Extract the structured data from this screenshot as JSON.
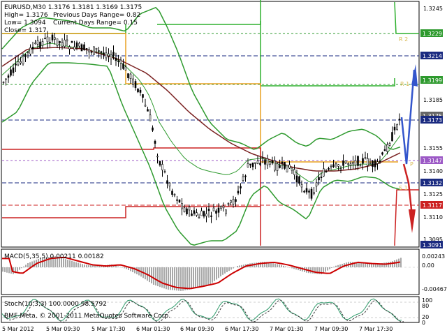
{
  "header": {
    "symbol_line": "EURUSD,M30  1.3176 1.3181 1.3169 1.3175",
    "high": "High= 1.3176",
    "low": "Low= 1.3094",
    "close": "Close= 1.317",
    "prev_range": "Previous Days Range= 0.82",
    "curr_range": "Current Days Range= 0.15"
  },
  "price_axis": {
    "ticks": [
      "1.3245",
      "1.3185",
      "1.3155",
      "1.3140",
      "1.3125",
      "1.3110",
      "1.3095"
    ],
    "badges": [
      {
        "label": "1.3229",
        "color": "#2e9a2e"
      },
      {
        "label": "1.3214",
        "color": "#1a2a80"
      },
      {
        "label": "1.3199",
        "color": "#2e9a2e"
      },
      {
        "label": "1.3175",
        "color": "#666666"
      },
      {
        "label": "1.3173",
        "color": "#1a2a80"
      },
      {
        "label": "1.3147",
        "color": "#9c59c6"
      },
      {
        "label": "1.3132",
        "color": "#1a2a80"
      },
      {
        "label": "1.3117",
        "color": "#cc2222"
      },
      {
        "label": "1.3091",
        "color": "#1a2a80"
      }
    ]
  },
  "pivot_labels": {
    "r2": "R 2",
    "r1": "R 1",
    "p": "P",
    "s1": "S 1"
  },
  "macd": {
    "label": "MACD(5,35,5) 0.00211 0.00182",
    "ticks": [
      "0.00243",
      "0.00",
      "-0.00467"
    ]
  },
  "stoch": {
    "label": "Stoch(10,3,3) 100.0000 98.5792",
    "ticks": [
      "100",
      "80",
      "20",
      "0"
    ]
  },
  "time_axis": [
    "5 Mar 2012",
    "5 Mar 09:30",
    "5 Mar 17:30",
    "6 Mar 01:30",
    "6 Mar 09:30",
    "6 Mar 17:30",
    "7 Mar 01:30",
    "7 Mar 09:30",
    "7 Mar 17:30"
  ],
  "copyright": "BMF-Meta, © 2001-2011 MetaQuotes Software Corp.",
  "colors": {
    "candles": "#000000",
    "bollinger": "#2e9a2e",
    "ma": "#7a2020",
    "macd_hist": "#a8a8a8",
    "macd_signal": "#cc0000",
    "stoch_main": "#2e9a6a",
    "stoch_signal": "#3a3a3a",
    "pivot_p": "#e8a020",
    "pivot_r": "#2eb02e",
    "pivot_s": "#cc2222",
    "arrow_up": "#3355cc",
    "arrow_down": "#cc2222"
  }
}
